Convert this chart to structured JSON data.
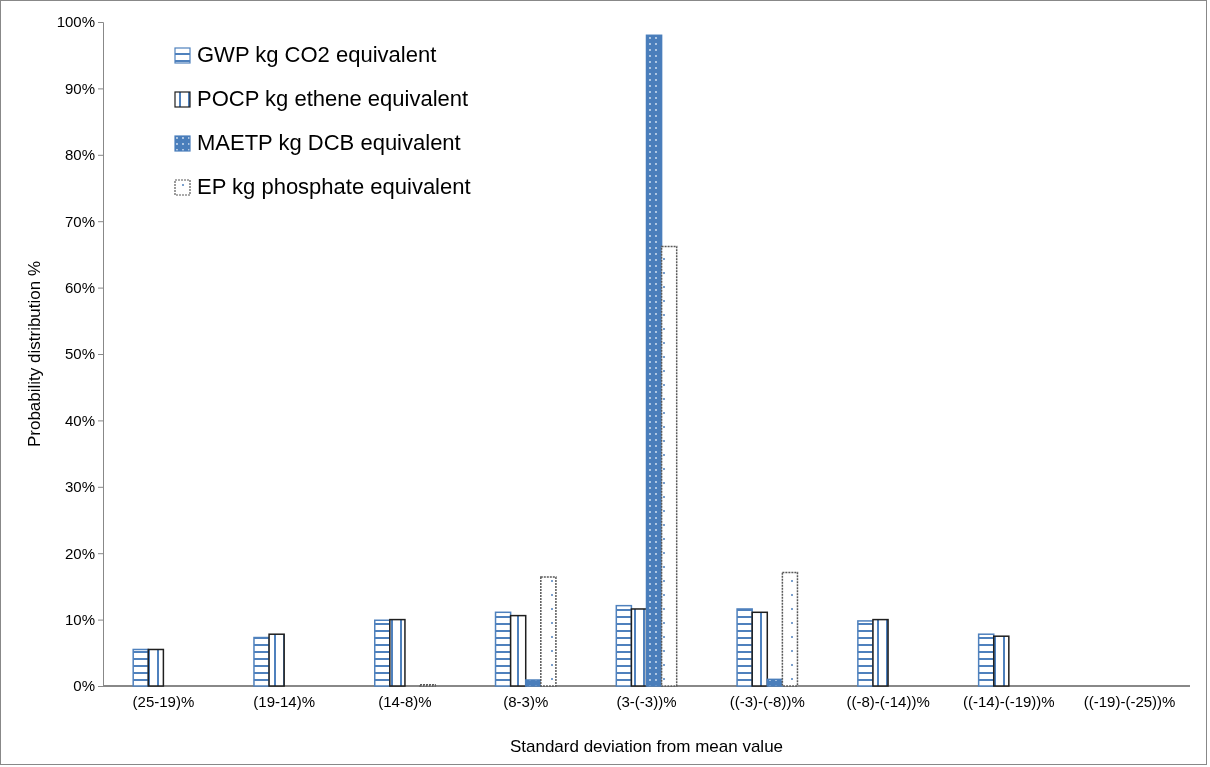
{
  "chart_data": {
    "type": "bar",
    "xlabel": "Standard deviation from mean value",
    "ylabel": "Probability distribution %",
    "categories": [
      "(25-19)%",
      "(19-14)%",
      "(14-8)%",
      "(8-3)%",
      "(3-(-3))%",
      "((-3)-(-8))%",
      "((-8)-(-14))%",
      "((-14)-(-19))%",
      "((-19)-(-25))%"
    ],
    "series": [
      {
        "name": "GWP kg CO2 equivalent",
        "color": "#4f81bd",
        "values": [
          5.5,
          7.3,
          9.9,
          11.1,
          12.1,
          11.6,
          9.8,
          7.8,
          null
        ]
      },
      {
        "name": "POCP kg ethene equivalent",
        "color": "#1f1f1f",
        "values": [
          5.5,
          7.8,
          10.0,
          10.6,
          11.6,
          11.1,
          10.0,
          7.5,
          null
        ]
      },
      {
        "name": "MAETP kg DCB equivalent",
        "color": "#4a7ebb",
        "values": [
          null,
          null,
          null,
          0.9,
          98,
          1.0,
          null,
          null,
          null
        ]
      },
      {
        "name": "EP kg phosphate equivalent",
        "color": "#595959",
        "values": [
          null,
          null,
          0.2,
          16.4,
          66.2,
          17.1,
          null,
          null,
          null
        ]
      }
    ],
    "ylim": [
      0,
      100
    ],
    "yticks": [
      {
        "value": 0,
        "label": "0%"
      },
      {
        "value": 10,
        "label": "10%"
      },
      {
        "value": 20,
        "label": "20%"
      },
      {
        "value": 30,
        "label": "30%"
      },
      {
        "value": 40,
        "label": "40%"
      },
      {
        "value": 50,
        "label": "50%"
      },
      {
        "value": 60,
        "label": "60%"
      },
      {
        "value": 70,
        "label": "70%"
      },
      {
        "value": 80,
        "label": "80%"
      },
      {
        "value": 90,
        "label": "90%"
      },
      {
        "value": 100,
        "label": "100%"
      }
    ],
    "grid": false,
    "legend": "top left"
  }
}
